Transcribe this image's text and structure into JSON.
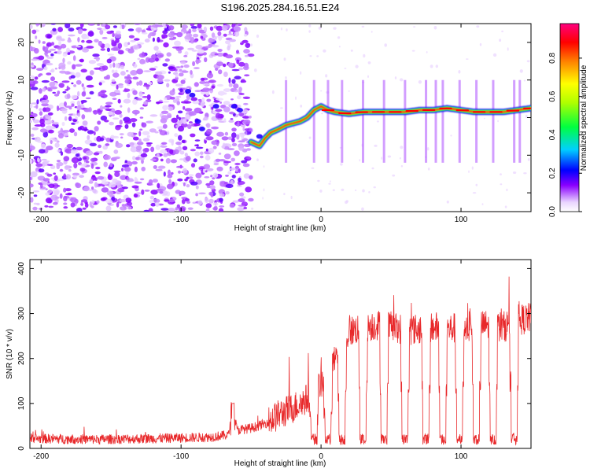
{
  "figure": {
    "title": "S196.2025.284.16.51.E24"
  },
  "chart_data": [
    {
      "type": "heatmap",
      "xlabel": "Height of straight line (km)",
      "ylabel": "Frequency (Hz)",
      "xlim": [
        -208,
        150
      ],
      "ylim": [
        -25,
        25
      ],
      "xticks": [
        -200,
        -100,
        0,
        100
      ],
      "yticks": [
        -20,
        -10,
        0,
        10,
        20
      ],
      "colorbar": {
        "label": "Normalized spectral amplitude",
        "range": [
          0,
          0.98
        ],
        "ticks": [
          "0.0",
          "0.2",
          "0.4",
          "0.6",
          "0.8"
        ]
      },
      "ridge": {
        "heights_km": [
          -50,
          -44,
          -40,
          -36,
          -30,
          -25,
          -20,
          -15,
          -10,
          -5,
          0,
          5,
          10,
          20,
          30,
          40,
          50,
          60,
          70,
          80,
          90,
          100,
          110,
          120,
          130,
          140,
          150
        ],
        "frequency_hz": [
          -6.5,
          -7.5,
          -5.5,
          -4.0,
          -3.0,
          -2.0,
          -1.5,
          -1.0,
          0.0,
          2.0,
          3.0,
          2.0,
          1.5,
          1.0,
          1.5,
          1.5,
          1.5,
          1.5,
          2.0,
          2.0,
          2.5,
          2.0,
          1.5,
          1.5,
          1.5,
          2.0,
          2.5
        ]
      }
    },
    {
      "type": "line",
      "xlabel": "Height of straight line (km)",
      "ylabel": "SNR (10 * v/v)",
      "xlim": [
        -208,
        150
      ],
      "ylim": [
        0,
        420
      ],
      "xticks": [
        -200,
        -100,
        0,
        100
      ],
      "yticks": [
        0,
        100,
        200,
        300,
        400
      ],
      "series": [
        {
          "name": "SNR",
          "color": "#e8282a",
          "x": [
            -208,
            -160,
            -120,
            -80,
            -66,
            -63,
            -60,
            -50,
            -40,
            -30,
            -20,
            -10,
            0,
            5,
            10,
            15,
            20,
            25,
            30,
            40,
            50,
            60,
            70,
            80,
            90,
            100,
            110,
            120,
            130,
            140,
            150
          ],
          "y": [
            22,
            20,
            22,
            25,
            30,
            95,
            40,
            45,
            55,
            75,
            90,
            110,
            145,
            170,
            195,
            225,
            260,
            265,
            270,
            275,
            270,
            265,
            265,
            270,
            265,
            270,
            270,
            275,
            270,
            285,
            290
          ]
        }
      ],
      "dropouts_km": [
        -5,
        5,
        15,
        30,
        45,
        60,
        75,
        87,
        99,
        111,
        123,
        138
      ]
    }
  ]
}
